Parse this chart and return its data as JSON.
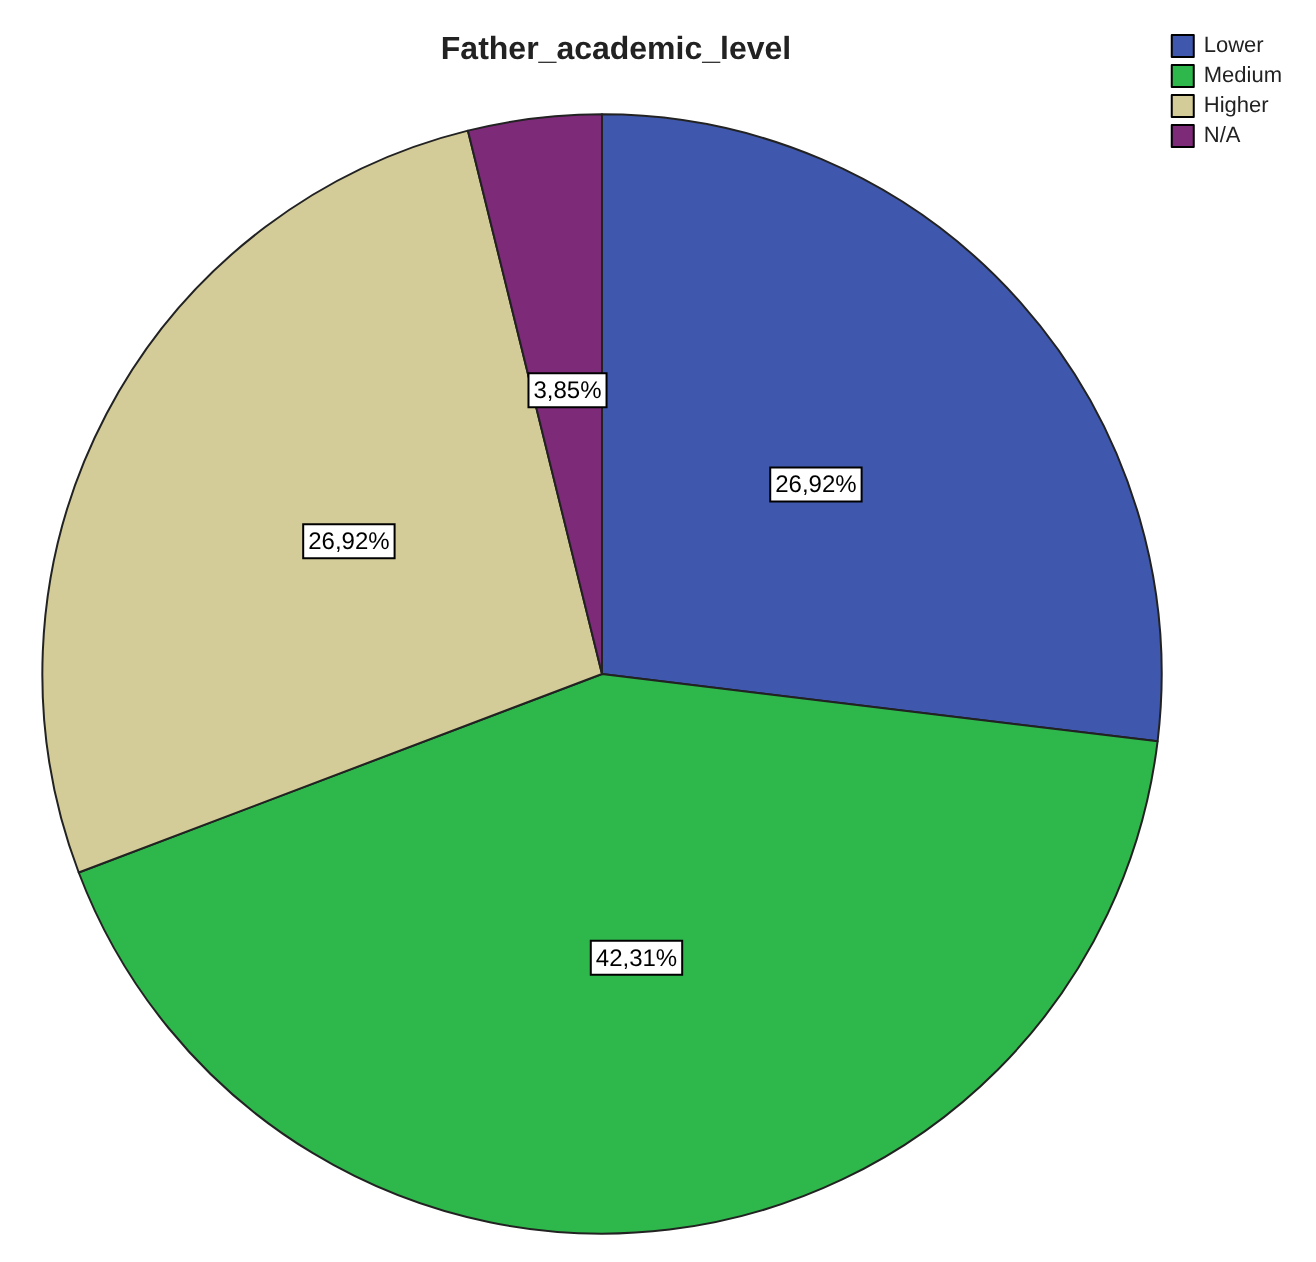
{
  "chart_data": {
    "type": "pie",
    "title": "Father_academic_level",
    "categories": [
      "Lower",
      "Medium",
      "Higher",
      "N/A"
    ],
    "values": [
      26.92,
      42.31,
      26.92,
      3.85
    ],
    "value_labels": [
      "26,92%",
      "42,31%",
      "26,92%",
      "3,85%"
    ],
    "colors": [
      "#3f58ad",
      "#2eb84b",
      "#d4cc98",
      "#7d2a79"
    ],
    "legend": "top right"
  }
}
